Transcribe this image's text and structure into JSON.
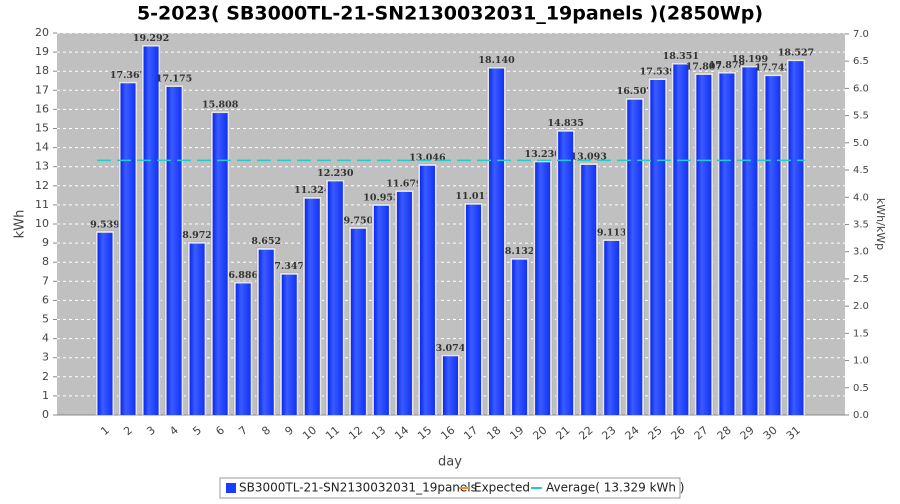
{
  "chart_data": {
    "type": "bar",
    "title": "5-2023( SB3000TL-21-SN2130032031_19panels )(2850Wp)",
    "x_label": "day",
    "y_label": "kWh",
    "y2_label": "kWh/kWp",
    "categories": [
      "1",
      "2",
      "3",
      "4",
      "5",
      "6",
      "7",
      "8",
      "9",
      "10",
      "11",
      "12",
      "13",
      "14",
      "15",
      "16",
      "17",
      "18",
      "19",
      "20",
      "21",
      "22",
      "23",
      "24",
      "25",
      "26",
      "27",
      "28",
      "29",
      "30",
      "31"
    ],
    "series": [
      {
        "name": "SB3000TL-21-SN2130032031_19panels",
        "color": "#1a3cff",
        "values": [
          9.539,
          17.367,
          19.292,
          17.175,
          8.972,
          15.808,
          6.886,
          8.652,
          7.347,
          11.324,
          12.23,
          9.75,
          10.953,
          11.679,
          13.046,
          3.074,
          11.011,
          18.14,
          8.132,
          13.23,
          14.835,
          13.093,
          9.113,
          16.507,
          17.539,
          18.351,
          17.807,
          17.878,
          18.199,
          17.742,
          18.527
        ],
        "value_labels": [
          "9.539",
          "17.367",
          "19.292",
          "17.175",
          "8.972",
          "15.808",
          "6.886",
          "8.652",
          "7.347",
          "11.324",
          "12.230",
          "9.750",
          "10.953",
          "11.679",
          "13.046",
          "3.074",
          "11.011",
          "18.140",
          "8.132",
          "13.230",
          "14.835",
          "13.093",
          "9.113",
          "16.507",
          "17.539",
          "18.351",
          "17.807",
          "17.878",
          "18.199",
          "17.742",
          "18.527"
        ]
      }
    ],
    "expected": {
      "name": "Expected",
      "color": "#ff8c1a"
    },
    "average": {
      "name": "Average( 13.329 kWh )",
      "value": 13.329,
      "color": "#22cccc"
    },
    "ylim": [
      0,
      20
    ],
    "yticks": [
      0,
      1,
      2,
      3,
      4,
      5,
      6,
      7,
      8,
      9,
      10,
      11,
      12,
      13,
      14,
      15,
      16,
      17,
      18,
      19,
      20
    ],
    "y2lim": [
      0,
      7.0175
    ],
    "y2ticks": [
      {
        "value": 0,
        "label": "0.0"
      },
      {
        "value": 0.5,
        "label": "0.5"
      },
      {
        "value": 1,
        "label": "1.0"
      },
      {
        "value": 1.5,
        "label": "1.5"
      },
      {
        "value": 2,
        "label": "2.0"
      },
      {
        "value": 2.5,
        "label": "2.5"
      },
      {
        "value": 3,
        "label": "3.0"
      },
      {
        "value": 3.5,
        "label": "3.5"
      },
      {
        "value": 4,
        "label": "4.0"
      },
      {
        "value": 4.5,
        "label": "4.5"
      },
      {
        "value": 5,
        "label": "5.0"
      },
      {
        "value": 5.5,
        "label": "5.5"
      },
      {
        "value": 6,
        "label": "6.0"
      },
      {
        "value": 6.5,
        "label": "6.5"
      },
      {
        "value": 7,
        "label": "7.0"
      }
    ],
    "grid": true
  }
}
